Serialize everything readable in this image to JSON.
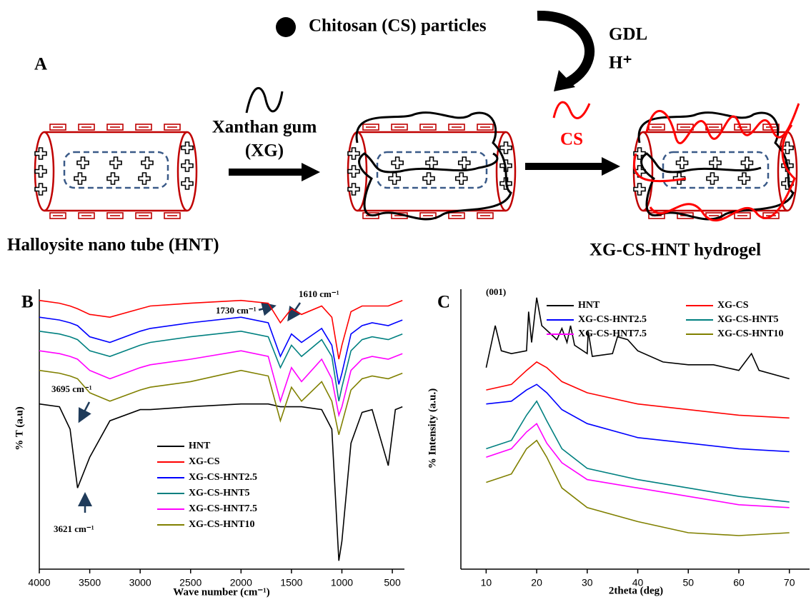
{
  "diagram": {
    "panel_label": "A",
    "particles_label": "Chitosan (CS) particles",
    "reagent_1": "GDL",
    "reagent_2": "H⁺",
    "xg_label_1": "Xanthan gum",
    "xg_label_2": "(XG)",
    "cs_label": "CS",
    "hnt_label": "Halloysite nano tube (HNT)",
    "product_label": "XG-CS-HNT hydrogel"
  },
  "chart_data": [
    {
      "type": "line",
      "panel_label": "B",
      "x_label": "Wave number (cm⁻¹)",
      "y_label": "% T (a.u)",
      "annotations": [
        "1730 cm⁻¹",
        "1610 cm⁻¹",
        "3695 cm⁻¹",
        "3621 cm⁻¹"
      ],
      "x": [
        4000,
        3800,
        3695,
        3621,
        3500,
        3300,
        3000,
        2900,
        2500,
        2000,
        1730,
        1610,
        1500,
        1400,
        1200,
        1100,
        1030,
        1000,
        910,
        800,
        700,
        540,
        470,
        400
      ],
      "xlim": [
        4000,
        380
      ],
      "xticks": [
        4000,
        3500,
        3000,
        2500,
        2000,
        1500,
        1000,
        500
      ],
      "ylim": [
        0,
        100
      ],
      "series": [
        {
          "name": "HNT",
          "color": "#000000",
          "values": [
            59,
            58,
            50,
            29,
            40,
            53,
            57,
            57,
            58,
            59,
            59,
            58,
            58,
            58,
            57,
            50,
            3,
            10,
            45,
            56,
            57,
            37,
            57,
            58
          ]
        },
        {
          "name": "XG-CS",
          "color": "#ff0000",
          "values": [
            96,
            95,
            94,
            93,
            91,
            90,
            93,
            94,
            95,
            96,
            95,
            88,
            93,
            91,
            94,
            90,
            75,
            80,
            92,
            94,
            94,
            94,
            95,
            96
          ]
        },
        {
          "name": "XG-CS-HNT2.5",
          "color": "#0000ff",
          "values": [
            90,
            89,
            88,
            87,
            83,
            81,
            85,
            86,
            88,
            90,
            88,
            76,
            84,
            81,
            86,
            80,
            66,
            70,
            84,
            87,
            88,
            87,
            88,
            89
          ]
        },
        {
          "name": "XG-CS-HNT5",
          "color": "#008080",
          "values": [
            85,
            84,
            83,
            82,
            78,
            76,
            80,
            81,
            83,
            85,
            83,
            72,
            80,
            76,
            82,
            76,
            60,
            65,
            78,
            82,
            83,
            82,
            83,
            84
          ]
        },
        {
          "name": "XG-CS-HNT7.5",
          "color": "#ff00ff",
          "values": [
            78,
            77,
            76,
            75,
            71,
            68,
            72,
            73,
            75,
            78,
            76,
            60,
            72,
            67,
            75,
            68,
            55,
            58,
            71,
            75,
            76,
            75,
            76,
            77
          ]
        },
        {
          "name": "XG-CS-HNT10",
          "color": "#808000",
          "values": [
            71,
            70,
            69,
            68,
            63,
            60,
            64,
            65,
            67,
            71,
            69,
            53,
            65,
            60,
            67,
            60,
            48,
            52,
            64,
            68,
            69,
            68,
            69,
            70
          ]
        }
      ]
    },
    {
      "type": "line",
      "panel_label": "C",
      "x_label": "2theta (deg)",
      "y_label": "% Intensity (a.u.)",
      "annotations": [
        "(001)"
      ],
      "xlim": [
        5,
        74
      ],
      "xticks": [
        10,
        20,
        30,
        40,
        50,
        60,
        70
      ],
      "ylim": [
        0,
        100
      ],
      "series": [
        {
          "name": "HNT",
          "color": "#000000",
          "x": [
            10,
            11.8,
            13,
            15,
            18,
            18.4,
            19,
            20,
            21,
            24,
            25,
            26,
            26.7,
            27.5,
            30,
            30.2,
            31,
            35,
            36,
            38,
            40,
            45,
            50,
            55,
            60,
            62.5,
            64,
            70
          ],
          "values": [
            72,
            87,
            78,
            77,
            78,
            92,
            81,
            97,
            87,
            82,
            86,
            81,
            87,
            80,
            77,
            85,
            76,
            77,
            83,
            82,
            78,
            74,
            73,
            73,
            71,
            77,
            71,
            68
          ]
        },
        {
          "name": "XG-CS",
          "color": "#ff0000",
          "x": [
            10,
            15,
            18,
            20,
            22,
            25,
            30,
            40,
            50,
            60,
            70
          ],
          "values": [
            64,
            66,
            71,
            74,
            72,
            67,
            63,
            59,
            57,
            55,
            54
          ]
        },
        {
          "name": "XG-CS-HNT2.5",
          "color": "#0000ff",
          "x": [
            10,
            15,
            18,
            20,
            22,
            25,
            30,
            40,
            50,
            60,
            70
          ],
          "values": [
            59,
            60,
            64,
            66,
            63,
            57,
            52,
            47,
            45,
            43,
            42
          ]
        },
        {
          "name": "XG-CS-HNT5",
          "color": "#008080",
          "x": [
            10,
            15,
            18,
            20,
            22,
            25,
            30,
            40,
            50,
            60,
            70
          ],
          "values": [
            43,
            46,
            55,
            60,
            53,
            43,
            36,
            32,
            29,
            26,
            24
          ]
        },
        {
          "name": "XG-CS-HNT7.5",
          "color": "#ff00ff",
          "x": [
            10,
            15,
            18,
            20,
            22,
            25,
            30,
            40,
            50,
            60,
            70
          ],
          "values": [
            40,
            43,
            49,
            52,
            45,
            38,
            32,
            29,
            26,
            23,
            22
          ]
        },
        {
          "name": "XG-CS-HNT10",
          "color": "#808000",
          "x": [
            10,
            15,
            18,
            20,
            22,
            25,
            30,
            40,
            50,
            60,
            70
          ],
          "values": [
            31,
            34,
            43,
            46,
            40,
            29,
            22,
            17,
            13,
            12,
            13
          ]
        }
      ]
    }
  ]
}
